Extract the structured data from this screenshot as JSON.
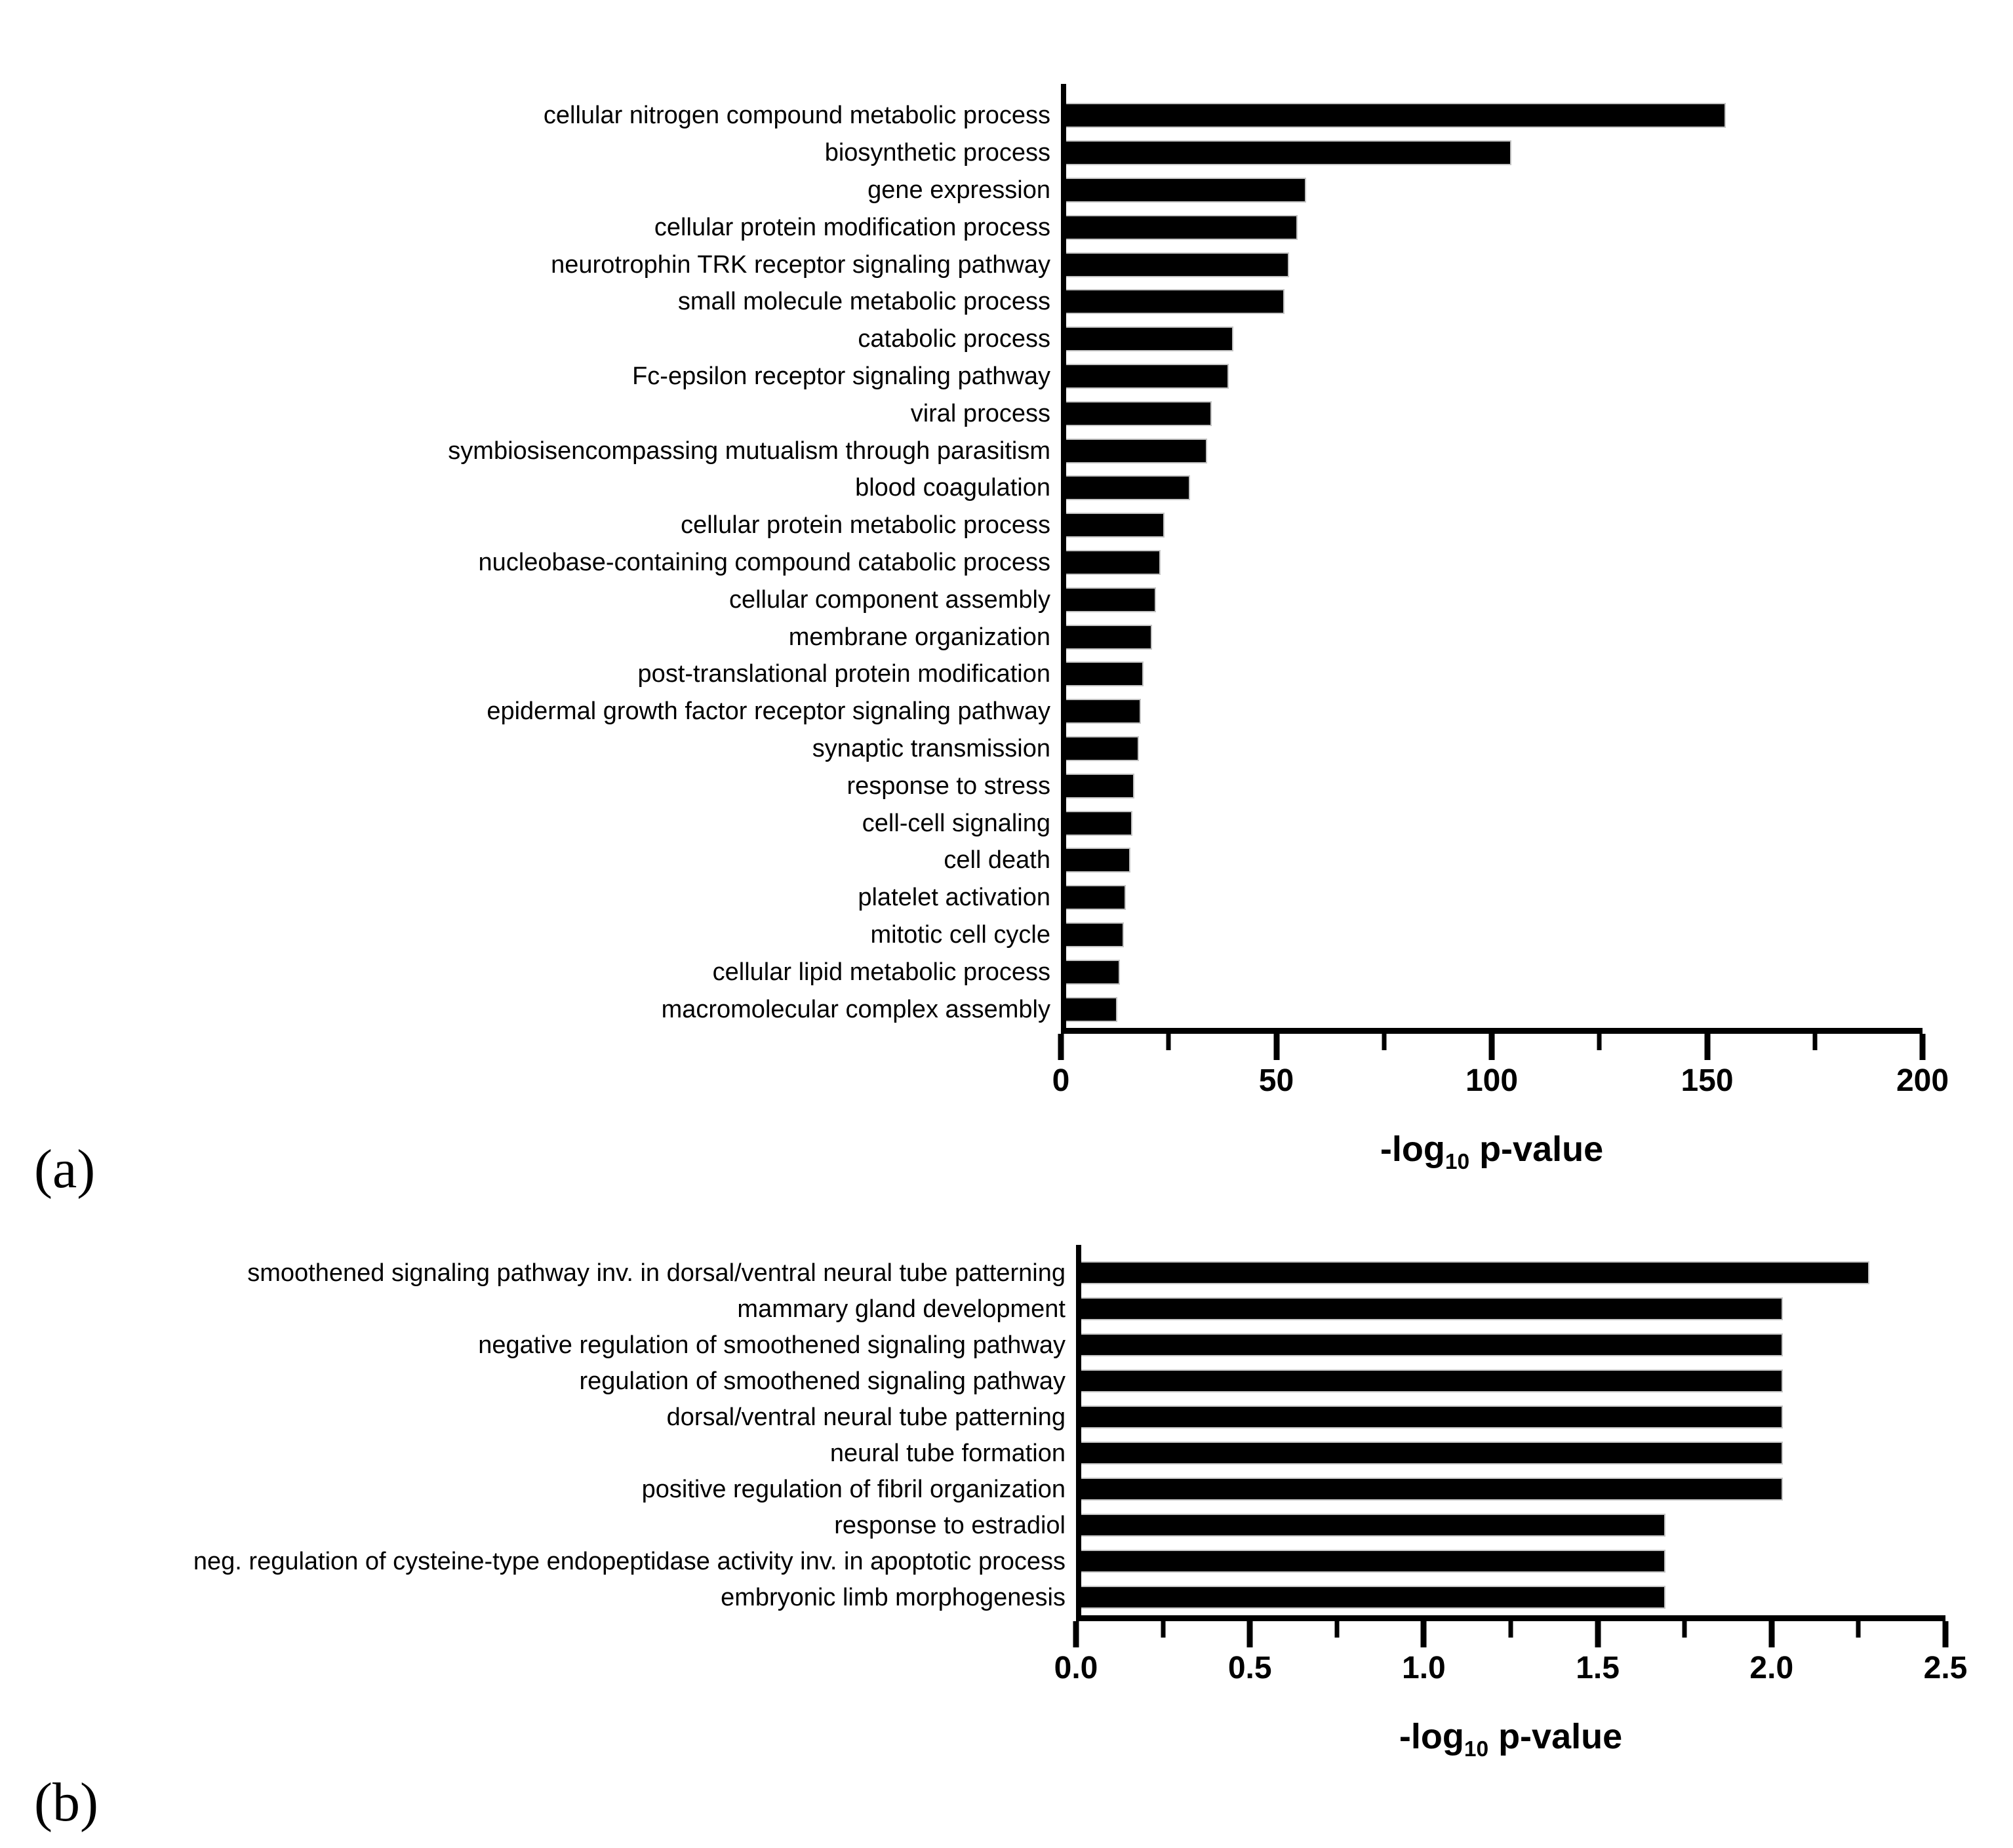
{
  "figure": {
    "background": "#ffffff",
    "bar_color": "#000000",
    "axis_color": "#000000"
  },
  "panels": [
    {
      "tag": "(a)",
      "xlabel": {
        "pre": "-log",
        "sub": "10",
        "post": " p-value"
      }
    },
    {
      "tag": "(b)",
      "xlabel": {
        "pre": "-log",
        "sub": "10",
        "post": " p-value"
      }
    }
  ],
  "chart_data": [
    {
      "type": "bar",
      "orientation": "horizontal",
      "title": "",
      "xlabel": "-log10 p-value",
      "ylabel": "",
      "grid": false,
      "legend_position": "none",
      "categories": [
        "cellular nitrogen compound metabolic process",
        "biosynthetic process",
        "gene expression",
        "cellular protein modification process",
        "neurotrophin TRK receptor signaling pathway",
        "small molecule metabolic process",
        "catabolic process",
        "Fc-epsilon receptor signaling pathway",
        "viral process",
        "symbiosisencompassing mutualism through parasitism",
        "blood coagulation",
        "cellular protein metabolic process",
        "nucleobase-containing compound catabolic process",
        "cellular component assembly",
        "membrane organization",
        "post-translational protein modification",
        "epidermal growth factor receptor signaling pathway",
        "synaptic transmission",
        "response to stress",
        "cell-cell signaling",
        "cell death",
        "platelet activation",
        "mitotic cell cycle",
        "cellular lipid metabolic process",
        "macromolecular complex assembly"
      ],
      "values": [
        154,
        104,
        56,
        54,
        52,
        51,
        39,
        38,
        34,
        33,
        29,
        23,
        22,
        21,
        20,
        18,
        17.5,
        17,
        16,
        15.5,
        15,
        14,
        13.5,
        12.5,
        12
      ],
      "xlim": [
        0,
        200
      ],
      "xticks": [
        0,
        50,
        100,
        150,
        200
      ],
      "xtick_labels": [
        "0",
        "50",
        "100",
        "150",
        "200"
      ],
      "minor_xticks": [
        25,
        75,
        125,
        175
      ],
      "bar_color": "#000000"
    },
    {
      "type": "bar",
      "orientation": "horizontal",
      "title": "",
      "xlabel": "-log10 p-value",
      "ylabel": "",
      "grid": false,
      "legend_position": "none",
      "categories": [
        "smoothened signaling pathway inv. in dorsal/ventral neural tube patterning",
        "mammary gland development",
        "negative regulation of smoothened signaling pathway",
        "regulation of smoothened signaling pathway",
        "dorsal/ventral neural tube patterning",
        "neural tube formation",
        "positive regulation of fibril organization",
        "response to estradiol",
        "neg. regulation of cysteine-type endopeptidase activity inv. in apoptotic process",
        "embryonic limb morphogenesis"
      ],
      "values": [
        2.28,
        2.03,
        2.03,
        2.03,
        2.03,
        2.03,
        2.03,
        1.69,
        1.69,
        1.69
      ],
      "xlim": [
        0,
        2.5
      ],
      "xticks": [
        0,
        0.5,
        1.0,
        1.5,
        2.0,
        2.5
      ],
      "xtick_labels": [
        "0.0",
        "0.5",
        "1.0",
        "1.5",
        "2.0",
        "2.5"
      ],
      "minor_xticks": [
        0.25,
        0.75,
        1.25,
        1.75,
        2.25
      ],
      "bar_color": "#000000"
    }
  ]
}
